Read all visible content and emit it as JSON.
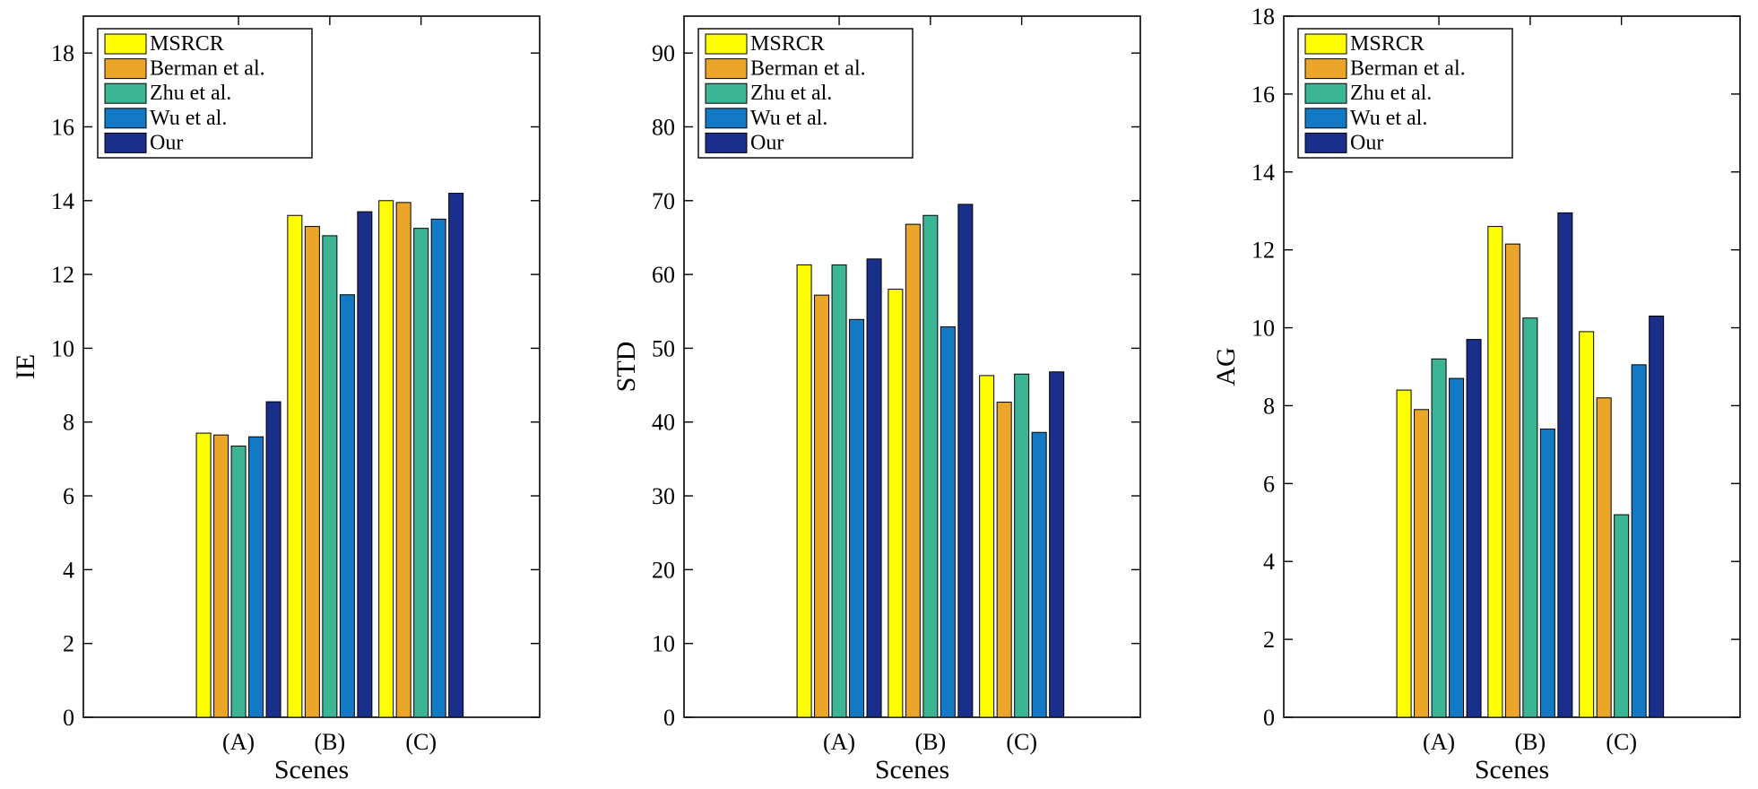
{
  "chart_data": [
    {
      "type": "bar",
      "title": "",
      "xlabel": "Scenes",
      "ylabel": "IE",
      "categories": [
        "(A)",
        "(B)",
        "(C)"
      ],
      "ylim": [
        0,
        19
      ],
      "yticks": [
        0,
        2,
        4,
        6,
        8,
        10,
        12,
        14,
        16,
        18
      ],
      "legend_position": "top-left",
      "grid": false,
      "series": [
        {
          "name": "MSRCR",
          "color": "#FFFF00",
          "values": [
            7.7,
            13.6,
            14.0
          ]
        },
        {
          "name": "Berman et al.",
          "color": "#EBA62A",
          "values": [
            7.65,
            13.3,
            13.95
          ]
        },
        {
          "name": "Zhu et al.",
          "color": "#3CB595",
          "values": [
            7.35,
            13.05,
            13.25
          ]
        },
        {
          "name": "Wu et al.",
          "color": "#1479C4",
          "values": [
            7.6,
            11.45,
            13.5
          ]
        },
        {
          "name": "Our",
          "color": "#1A2E8C",
          "values": [
            8.55,
            13.7,
            14.2
          ]
        }
      ]
    },
    {
      "type": "bar",
      "title": "",
      "xlabel": "Scenes",
      "ylabel": "STD",
      "categories": [
        "(A)",
        "(B)",
        "(C)"
      ],
      "ylim": [
        0,
        95
      ],
      "yticks": [
        0,
        10,
        20,
        30,
        40,
        50,
        60,
        70,
        80,
        90
      ],
      "legend_position": "top-left",
      "grid": false,
      "series": [
        {
          "name": "MSRCR",
          "color": "#FFFF00",
          "values": [
            61.3,
            58.0,
            46.3
          ]
        },
        {
          "name": "Berman et al.",
          "color": "#EBA62A",
          "values": [
            57.2,
            66.8,
            42.7
          ]
        },
        {
          "name": "Zhu et al.",
          "color": "#3CB595",
          "values": [
            61.3,
            68.0,
            46.5
          ]
        },
        {
          "name": "Wu et al.",
          "color": "#1479C4",
          "values": [
            53.9,
            52.9,
            38.6
          ]
        },
        {
          "name": "Our",
          "color": "#1A2E8C",
          "values": [
            62.1,
            69.5,
            46.8
          ]
        }
      ]
    },
    {
      "type": "bar",
      "title": "",
      "xlabel": "Scenes",
      "ylabel": "AG",
      "categories": [
        "(A)",
        "(B)",
        "(C)"
      ],
      "ylim": [
        0,
        18
      ],
      "yticks": [
        0,
        2,
        4,
        6,
        8,
        10,
        12,
        14,
        16,
        18
      ],
      "legend_position": "top-left",
      "grid": false,
      "series": [
        {
          "name": "MSRCR",
          "color": "#FFFF00",
          "values": [
            8.4,
            12.6,
            9.9
          ]
        },
        {
          "name": "Berman et al.",
          "color": "#EBA62A",
          "values": [
            7.9,
            12.15,
            8.2
          ]
        },
        {
          "name": "Zhu et al.",
          "color": "#3CB595",
          "values": [
            9.2,
            10.25,
            5.2
          ]
        },
        {
          "name": "Wu et al.",
          "color": "#1479C4",
          "values": [
            8.7,
            7.4,
            9.05
          ]
        },
        {
          "name": "Our",
          "color": "#1A2E8C",
          "values": [
            9.7,
            12.95,
            10.3
          ]
        }
      ]
    }
  ]
}
